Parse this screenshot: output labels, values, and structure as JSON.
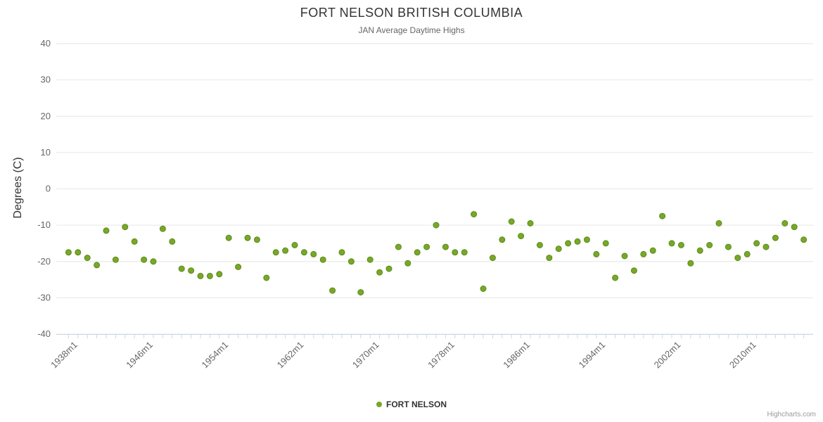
{
  "title": "FORT NELSON BRITISH COLUMBIA",
  "subtitle": "JAN Average Daytime Highs",
  "y_axis_title": "Degrees (C)",
  "legend": {
    "series_label": "FORT NELSON"
  },
  "credits": "Highcharts.com",
  "colors": {
    "point": "#77a829",
    "point_stroke": "#5d8a16",
    "gridline": "#e6e6e6",
    "axis_line": "#ccd6eb",
    "tick": "#ccd6eb",
    "axis_label": "#666666"
  },
  "chart_data": {
    "type": "scatter",
    "title": "FORT NELSON BRITISH COLUMBIA",
    "subtitle": "JAN Average Daytime Highs",
    "ylabel": "Degrees (C)",
    "xlabel": "",
    "ylim": [
      -40,
      40
    ],
    "xlim": [
      1936,
      2016
    ],
    "grid": "horizontal",
    "legend_position": "bottom-center",
    "yticks": [
      40,
      30,
      20,
      10,
      0,
      -10,
      -20,
      -30,
      -40
    ],
    "xticks": [
      {
        "year": 1938,
        "label": "1938m1"
      },
      {
        "year": 1946,
        "label": "1946m1"
      },
      {
        "year": 1954,
        "label": "1954m1"
      },
      {
        "year": 1962,
        "label": "1962m1"
      },
      {
        "year": 1970,
        "label": "1970m1"
      },
      {
        "year": 1978,
        "label": "1978m1"
      },
      {
        "year": 1986,
        "label": "1986m1"
      },
      {
        "year": 1994,
        "label": "1994m1"
      },
      {
        "year": 2002,
        "label": "2002m1"
      },
      {
        "year": 2010,
        "label": "2010m1"
      }
    ],
    "series": [
      {
        "name": "FORT NELSON",
        "x": [
          1937,
          1938,
          1939,
          1940,
          1941,
          1942,
          1943,
          1944,
          1945,
          1946,
          1947,
          1948,
          1949,
          1950,
          1951,
          1952,
          1953,
          1954,
          1955,
          1956,
          1957,
          1958,
          1959,
          1960,
          1961,
          1962,
          1963,
          1964,
          1965,
          1966,
          1967,
          1968,
          1969,
          1970,
          1971,
          1972,
          1973,
          1974,
          1975,
          1976,
          1977,
          1978,
          1979,
          1980,
          1981,
          1982,
          1983,
          1984,
          1985,
          1986,
          1987,
          1988,
          1989,
          1990,
          1991,
          1992,
          1993,
          1994,
          1995,
          1996,
          1997,
          1998,
          1999,
          2000,
          2001,
          2002,
          2003,
          2004,
          2005,
          2006,
          2007,
          2008,
          2009,
          2010,
          2011,
          2012,
          2013,
          2014,
          2015
        ],
        "y": [
          -17.5,
          -17.5,
          -19,
          -21,
          -11.5,
          -19.5,
          -10.5,
          -14.5,
          -19.5,
          -20,
          -11,
          -14.5,
          -22,
          -22.5,
          -24,
          -24,
          -23.5,
          -13.5,
          -21.5,
          -13.5,
          -14,
          -24.5,
          -17.5,
          -17,
          -15.5,
          -17.5,
          -18,
          -19.5,
          -28,
          -17.5,
          -20,
          -28.5,
          -19.5,
          -23,
          -22,
          -16,
          -20.5,
          -17.5,
          -16,
          -10,
          -16,
          -17.5,
          -17.5,
          -7,
          -27.5,
          -19,
          -14,
          -9,
          -13,
          -9.5,
          -15.5,
          -19,
          -16.5,
          -15,
          -14.5,
          -14,
          -18,
          -15,
          -24.5,
          -18.5,
          -22.5,
          -18,
          -17,
          -7.5,
          -15,
          -15.5,
          -20.5,
          -17,
          -15.5,
          -9.5,
          -16,
          -19,
          -18,
          -15,
          -16,
          -13.5,
          -9.5,
          -10.5,
          -14
        ]
      }
    ]
  }
}
